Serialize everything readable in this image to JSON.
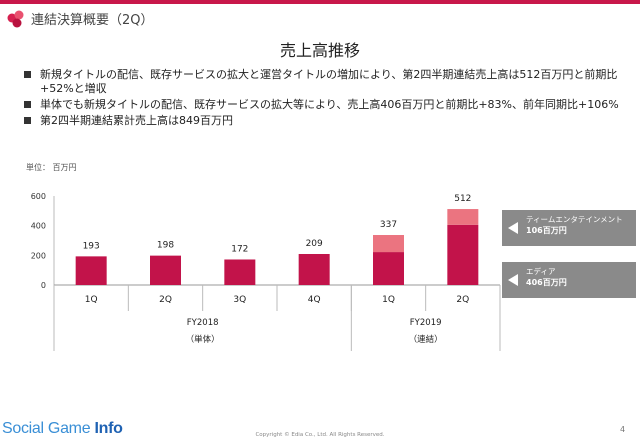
{
  "header": {
    "title": "連結決算概要（2Q）"
  },
  "main_title": "売上高推移",
  "bullets": [
    "新規タイトルの配信、既存サービスの拡大と運営タイトルの増加により、第2四半期連結売上高は512百万円と前期比+52%と増収",
    "単体でも新規タイトルの配信、既存サービスの拡大等により、売上高406百万円と前期比+83%、前年同期比+106%",
    "第2四半期連結累計売上高は849百万円"
  ],
  "unit_label": "単位： 百万円",
  "chart_data": {
    "type": "bar",
    "stacked": true,
    "categories": [
      "1Q",
      "2Q",
      "3Q",
      "4Q",
      "1Q",
      "2Q"
    ],
    "series": [
      {
        "name": "エディア",
        "values": [
          193,
          198,
          172,
          209,
          222,
          406
        ],
        "color": "#c2134a"
      },
      {
        "name": "ティームエンタテインメント",
        "values": [
          0,
          0,
          0,
          0,
          115,
          106
        ],
        "color": "#eb7480"
      }
    ],
    "totals": [
      193,
      198,
      172,
      209,
      337,
      512
    ],
    "groups": [
      {
        "label": "FY2018",
        "sublabel": "（単体）",
        "categories": [
          0,
          1,
          2,
          3
        ]
      },
      {
        "label": "FY2019",
        "sublabel": "（連結）",
        "categories": [
          4,
          5
        ]
      }
    ],
    "yticks": [
      0,
      200,
      400,
      600
    ],
    "ylim": [
      0,
      600
    ],
    "grid": false,
    "title": "",
    "xlabel": "",
    "ylabel": ""
  },
  "callouts": [
    {
      "name": "ティームエンタテインメント",
      "value": "106百万円"
    },
    {
      "name": "エディア",
      "value": "406百万円"
    }
  ],
  "footer": {
    "logo_a": "Social Game ",
    "logo_b": "Info",
    "copyright": "Copyright © Edia Co., Ltd. All Rights Reserved.",
    "page": "4"
  }
}
